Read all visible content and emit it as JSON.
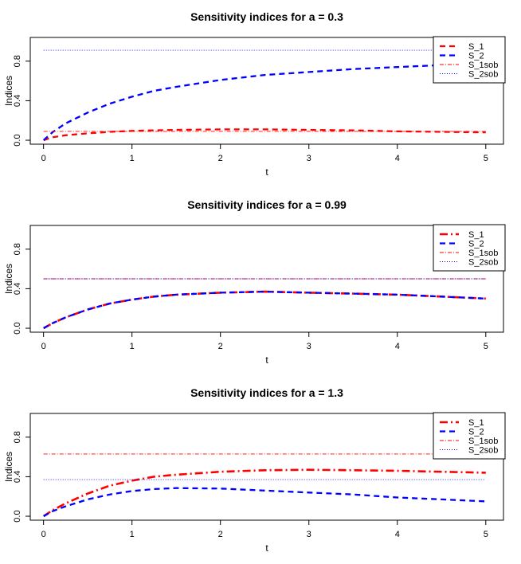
{
  "chart_data": [
    {
      "type": "line",
      "title": "Sensitivity indices for a = 0.3",
      "xlabel": "t",
      "ylabel": "Indices",
      "xlim": [
        0,
        5
      ],
      "ylim": [
        0,
        1
      ],
      "xticks": [
        0,
        1,
        2,
        3,
        4,
        5
      ],
      "yticks": [
        0.0,
        0.4,
        0.8
      ],
      "x": [
        0,
        0.1,
        0.25,
        0.5,
        0.75,
        1,
        1.25,
        1.5,
        2,
        2.5,
        3,
        3.5,
        4,
        4.5,
        5
      ],
      "legend_entries": [
        "S_1",
        "S_2",
        "S_1sob",
        "S_2sob"
      ],
      "series": [
        {
          "name": "S_1",
          "color": "#ff0000",
          "style": "dashed-thick",
          "values": [
            0,
            0.03,
            0.05,
            0.07,
            0.085,
            0.095,
            0.1,
            0.105,
            0.11,
            0.11,
            0.105,
            0.1,
            0.09,
            0.085,
            0.08
          ]
        },
        {
          "name": "S_2",
          "color": "#0000ff",
          "style": "dashed-thick",
          "values": [
            0,
            0.08,
            0.17,
            0.28,
            0.37,
            0.44,
            0.5,
            0.54,
            0.61,
            0.66,
            0.69,
            0.72,
            0.74,
            0.76,
            0.78
          ]
        },
        {
          "name": "S_1sob",
          "color": "#ff0000",
          "style": "dotdash-thin",
          "values": [
            0.09,
            0.09,
            0.09,
            0.09,
            0.09,
            0.09,
            0.09,
            0.09,
            0.09,
            0.09,
            0.09,
            0.09,
            0.09,
            0.09,
            0.09
          ]
        },
        {
          "name": "S_2sob",
          "color": "#0000ff",
          "style": "dotted-thin",
          "values": [
            0.91,
            0.91,
            0.91,
            0.91,
            0.91,
            0.91,
            0.91,
            0.91,
            0.91,
            0.91,
            0.91,
            0.91,
            0.91,
            0.91,
            0.91
          ]
        }
      ]
    },
    {
      "type": "line",
      "title": "Sensitivity indices for a = 0.99",
      "xlabel": "t",
      "ylabel": "Indices",
      "xlim": [
        0,
        5
      ],
      "ylim": [
        0,
        1
      ],
      "xticks": [
        0,
        1,
        2,
        3,
        4,
        5
      ],
      "yticks": [
        0.0,
        0.4,
        0.8
      ],
      "x": [
        0,
        0.1,
        0.25,
        0.5,
        0.75,
        1,
        1.25,
        1.5,
        2,
        2.5,
        3,
        3.5,
        4,
        4.5,
        5
      ],
      "legend_entries": [
        "S_1",
        "S_2",
        "S_1sob",
        "S_2sob"
      ],
      "series": [
        {
          "name": "S_1",
          "color": "#ff0000",
          "style": "dotdash-thick",
          "values": [
            0,
            0.05,
            0.11,
            0.19,
            0.25,
            0.29,
            0.32,
            0.34,
            0.36,
            0.37,
            0.36,
            0.35,
            0.34,
            0.32,
            0.3
          ]
        },
        {
          "name": "S_2",
          "color": "#0000ff",
          "style": "dashed-thick",
          "values": [
            0,
            0.05,
            0.11,
            0.19,
            0.25,
            0.29,
            0.32,
            0.34,
            0.36,
            0.37,
            0.36,
            0.35,
            0.34,
            0.32,
            0.3
          ]
        },
        {
          "name": "S_1sob",
          "color": "#ff0000",
          "style": "dotdash-thin",
          "values": [
            0.5,
            0.5,
            0.5,
            0.5,
            0.5,
            0.5,
            0.5,
            0.5,
            0.5,
            0.5,
            0.5,
            0.5,
            0.5,
            0.5,
            0.5
          ]
        },
        {
          "name": "S_2sob",
          "color": "#0000ff",
          "style": "dotted-thin",
          "values": [
            0.5,
            0.5,
            0.5,
            0.5,
            0.5,
            0.5,
            0.5,
            0.5,
            0.5,
            0.5,
            0.5,
            0.5,
            0.5,
            0.5,
            0.5
          ]
        }
      ]
    },
    {
      "type": "line",
      "title": "Sensitivity indices for a = 1.3",
      "xlabel": "t",
      "ylabel": "Indices",
      "xlim": [
        0,
        5
      ],
      "ylim": [
        0,
        1
      ],
      "xticks": [
        0,
        1,
        2,
        3,
        4,
        5
      ],
      "yticks": [
        0.0,
        0.4,
        0.8
      ],
      "x": [
        0,
        0.1,
        0.25,
        0.5,
        0.75,
        1,
        1.25,
        1.5,
        2,
        2.5,
        3,
        3.5,
        4,
        4.5,
        5
      ],
      "legend_entries": [
        "S_1",
        "S_2",
        "S_1sob",
        "S_2sob"
      ],
      "series": [
        {
          "name": "S_1",
          "color": "#ff0000",
          "style": "dotdash-thick",
          "values": [
            0,
            0.06,
            0.13,
            0.23,
            0.31,
            0.36,
            0.4,
            0.42,
            0.45,
            0.465,
            0.47,
            0.465,
            0.46,
            0.45,
            0.44
          ]
        },
        {
          "name": "S_2",
          "color": "#0000ff",
          "style": "dashed-thick",
          "values": [
            0,
            0.05,
            0.1,
            0.17,
            0.22,
            0.255,
            0.275,
            0.285,
            0.28,
            0.26,
            0.24,
            0.22,
            0.19,
            0.17,
            0.15
          ]
        },
        {
          "name": "S_1sob",
          "color": "#ff0000",
          "style": "dotdash-thin",
          "values": [
            0.63,
            0.63,
            0.63,
            0.63,
            0.63,
            0.63,
            0.63,
            0.63,
            0.63,
            0.63,
            0.63,
            0.63,
            0.63,
            0.63,
            0.63
          ]
        },
        {
          "name": "S_2sob",
          "color": "#0000ff",
          "style": "dotted-thin",
          "values": [
            0.37,
            0.37,
            0.37,
            0.37,
            0.37,
            0.37,
            0.37,
            0.37,
            0.37,
            0.37,
            0.37,
            0.37,
            0.37,
            0.37,
            0.37
          ]
        }
      ]
    }
  ]
}
